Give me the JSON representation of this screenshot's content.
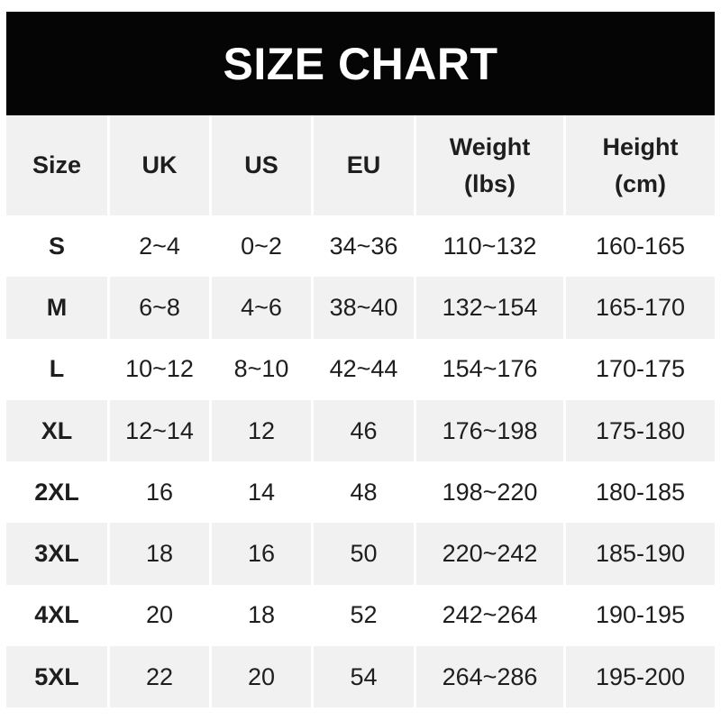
{
  "banner": {
    "title": "SIZE CHART"
  },
  "colors": {
    "banner_bg": "#050505",
    "banner_text": "#ffffff",
    "row_alt_bg": "#f1f1f1",
    "row_bg": "#ffffff",
    "text": "#1e1e1e",
    "page_bg": "#ffffff"
  },
  "chart_data": {
    "type": "table",
    "title": "SIZE CHART",
    "columns": [
      {
        "label": "Size",
        "sublabel": ""
      },
      {
        "label": "UK",
        "sublabel": ""
      },
      {
        "label": "US",
        "sublabel": ""
      },
      {
        "label": "EU",
        "sublabel": ""
      },
      {
        "label": "Weight",
        "sublabel": "(lbs)"
      },
      {
        "label": "Height",
        "sublabel": "(cm)"
      }
    ],
    "rows": [
      [
        "S",
        "2~4",
        "0~2",
        "34~36",
        "110~132",
        "160-165"
      ],
      [
        "M",
        "6~8",
        "4~6",
        "38~40",
        "132~154",
        "165-170"
      ],
      [
        "L",
        "10~12",
        "8~10",
        "42~44",
        "154~176",
        "170-175"
      ],
      [
        "XL",
        "12~14",
        "12",
        "46",
        "176~198",
        "175-180"
      ],
      [
        "2XL",
        "16",
        "14",
        "48",
        "198~220",
        "180-185"
      ],
      [
        "3XL",
        "18",
        "16",
        "50",
        "220~242",
        "185-190"
      ],
      [
        "4XL",
        "20",
        "18",
        "52",
        "242~264",
        "190-195"
      ],
      [
        "5XL",
        "22",
        "20",
        "54",
        "264~286",
        "195-200"
      ]
    ],
    "layout": {
      "alternating_rows": true,
      "first_data_row_background": "white",
      "header_background": "gray"
    }
  }
}
